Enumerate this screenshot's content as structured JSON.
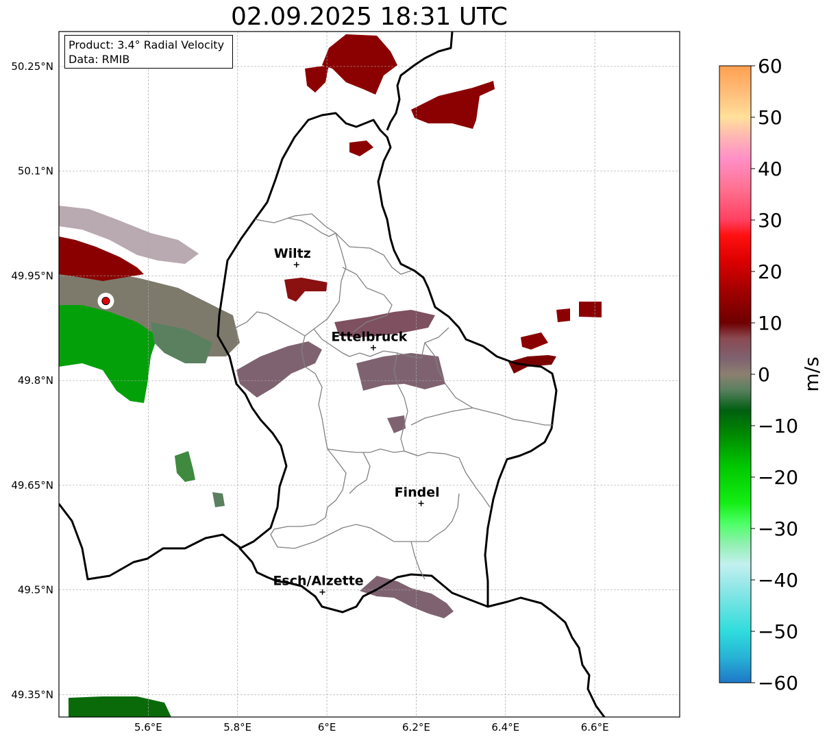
{
  "title": "02.09.2025 18:31 UTC",
  "info": {
    "product": "Product: 3.4° Radial Velocity",
    "data": "Data: RMIB"
  },
  "map": {
    "lon_range": [
      5.4,
      6.79
    ],
    "lat_range": [
      49.318,
      50.3
    ],
    "lon_ticks": [
      {
        "value": 5.6,
        "label": "5.6°E"
      },
      {
        "value": 5.8,
        "label": "5.8°E"
      },
      {
        "value": 6.0,
        "label": "6°E"
      },
      {
        "value": 6.2,
        "label": "6.2°E"
      },
      {
        "value": 6.4,
        "label": "6.4°E"
      },
      {
        "value": 6.6,
        "label": "6.6°E"
      }
    ],
    "lat_ticks": [
      {
        "value": 50.25,
        "label": "50.25°N"
      },
      {
        "value": 50.1,
        "label": "50.1°N"
      },
      {
        "value": 49.95,
        "label": "49.95°N"
      },
      {
        "value": 49.8,
        "label": "49.8°N"
      },
      {
        "value": 49.65,
        "label": "49.65°N"
      },
      {
        "value": 49.5,
        "label": "49.5°N"
      },
      {
        "value": 49.35,
        "label": "49.35°N"
      }
    ],
    "grid": true,
    "radar_site": {
      "lon": 5.505,
      "lat": 49.914
    },
    "cities": [
      {
        "name": "Wiltz",
        "lon": 5.932,
        "lat": 49.966
      },
      {
        "name": "Ettelbruck",
        "lon": 6.104,
        "lat": 49.847
      },
      {
        "name": "Findel",
        "lon": 6.211,
        "lat": 49.624
      },
      {
        "name": "Esch/Alzette",
        "lon": 5.99,
        "lat": 49.497
      }
    ]
  },
  "colorbar": {
    "label": "m/s",
    "min": -60,
    "max": 60,
    "ticks": [
      {
        "value": 60,
        "label": "60"
      },
      {
        "value": 50,
        "label": "50"
      },
      {
        "value": 40,
        "label": "40"
      },
      {
        "value": 30,
        "label": "30"
      },
      {
        "value": 20,
        "label": "20"
      },
      {
        "value": 10,
        "label": "10"
      },
      {
        "value": 0,
        "label": "0"
      },
      {
        "value": -10,
        "label": "−10"
      },
      {
        "value": -20,
        "label": "−20"
      },
      {
        "value": -30,
        "label": "−30"
      },
      {
        "value": -40,
        "label": "−40"
      },
      {
        "value": -50,
        "label": "−50"
      },
      {
        "value": -60,
        "label": "−60"
      }
    ],
    "color_stops": [
      {
        "value": -60,
        "color": "#1f78c8"
      },
      {
        "value": -55,
        "color": "#27b3d6"
      },
      {
        "value": -50,
        "color": "#30dcdc"
      },
      {
        "value": -42,
        "color": "#8be6e6"
      },
      {
        "value": -37,
        "color": "#c3f0f0"
      },
      {
        "value": -33,
        "color": "#90f0b0"
      },
      {
        "value": -29,
        "color": "#4dff66"
      },
      {
        "value": -25,
        "color": "#14ee14"
      },
      {
        "value": -18,
        "color": "#00c800"
      },
      {
        "value": -12,
        "color": "#008c00"
      },
      {
        "value": -7,
        "color": "#005f10"
      },
      {
        "value": -3,
        "color": "#5a8060"
      },
      {
        "value": 0,
        "color": "#8c8070"
      },
      {
        "value": 3,
        "color": "#7f6270"
      },
      {
        "value": 7,
        "color": "#8a4a52"
      },
      {
        "value": 10,
        "color": "#6e0000"
      },
      {
        "value": 16,
        "color": "#a00000"
      },
      {
        "value": 22,
        "color": "#dc0000"
      },
      {
        "value": 27,
        "color": "#ff1010"
      },
      {
        "value": 30,
        "color": "#ff4060"
      },
      {
        "value": 36,
        "color": "#ff7090"
      },
      {
        "value": 42,
        "color": "#ff90c8"
      },
      {
        "value": 46,
        "color": "#ffb4b4"
      },
      {
        "value": 50,
        "color": "#ffe09a"
      },
      {
        "value": 55,
        "color": "#ffbc78"
      },
      {
        "value": 60,
        "color": "#ffa050"
      }
    ]
  },
  "echoes": [
    {
      "id": "radar-near-field",
      "kind": "radar-sector",
      "velocity_ms": -4
    },
    {
      "id": "radar-receding-lobe",
      "kind": "radar-sector",
      "velocity_ms": 14
    },
    {
      "id": "radar-approaching-lobe",
      "kind": "radar-sector",
      "velocity_ms": -13
    },
    {
      "id": "north-cluster",
      "kind": "cell",
      "velocity_ms": 15
    },
    {
      "id": "north-east-cluster",
      "kind": "cell",
      "velocity_ms": 15
    },
    {
      "id": "east-cluster",
      "kind": "cell",
      "velocity_ms": 13
    },
    {
      "id": "far-east-cluster",
      "kind": "cell",
      "velocity_ms": 14
    },
    {
      "id": "central-band",
      "kind": "cell",
      "velocity_ms": 5
    },
    {
      "id": "south-band",
      "kind": "cell",
      "velocity_ms": 5
    },
    {
      "id": "south-west-cells",
      "kind": "cell",
      "velocity_ms": -6
    },
    {
      "id": "bottom-left-cell",
      "kind": "cell",
      "velocity_ms": -10
    }
  ]
}
